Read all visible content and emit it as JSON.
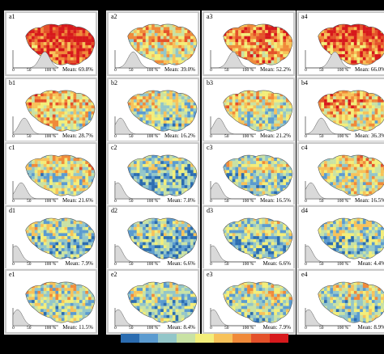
{
  "histogram_ticks": [
    "0",
    "50",
    "100 %"
  ],
  "mean_prefix": "Mean:",
  "panels": [
    {
      "label": "a1",
      "mean": "69.8%"
    },
    {
      "label": "a2",
      "mean": "39.0%"
    },
    {
      "label": "a3",
      "mean": "52.2%"
    },
    {
      "label": "a4",
      "mean": "66.0%"
    },
    {
      "label": "b1",
      "mean": "28.7%"
    },
    {
      "label": "b2",
      "mean": "16.2%"
    },
    {
      "label": "b3",
      "mean": "21.2%"
    },
    {
      "label": "b4",
      "mean": "36.3%"
    },
    {
      "label": "c1",
      "mean": "21.6%"
    },
    {
      "label": "c2",
      "mean": "7.8%"
    },
    {
      "label": "c3",
      "mean": "16.5%"
    },
    {
      "label": "c4",
      "mean": "16.5%"
    },
    {
      "label": "d1",
      "mean": "7.9%"
    },
    {
      "label": "d2",
      "mean": "6.6%"
    },
    {
      "label": "d3",
      "mean": "6.6%"
    },
    {
      "label": "d4",
      "mean": "4.4%"
    },
    {
      "label": "e1",
      "mean": "11.5%"
    },
    {
      "label": "e2",
      "mean": "8.4%"
    },
    {
      "label": "e3",
      "mean": "7.9%"
    },
    {
      "label": "e4",
      "mean": "8.9%"
    }
  ],
  "colorbar_colors": [
    "#2b6cb0",
    "#5b9bd0",
    "#93c6c9",
    "#c9e2a4",
    "#f3ee7a",
    "#f7c25a",
    "#f08a3a",
    "#e4512a",
    "#d7191c"
  ]
}
